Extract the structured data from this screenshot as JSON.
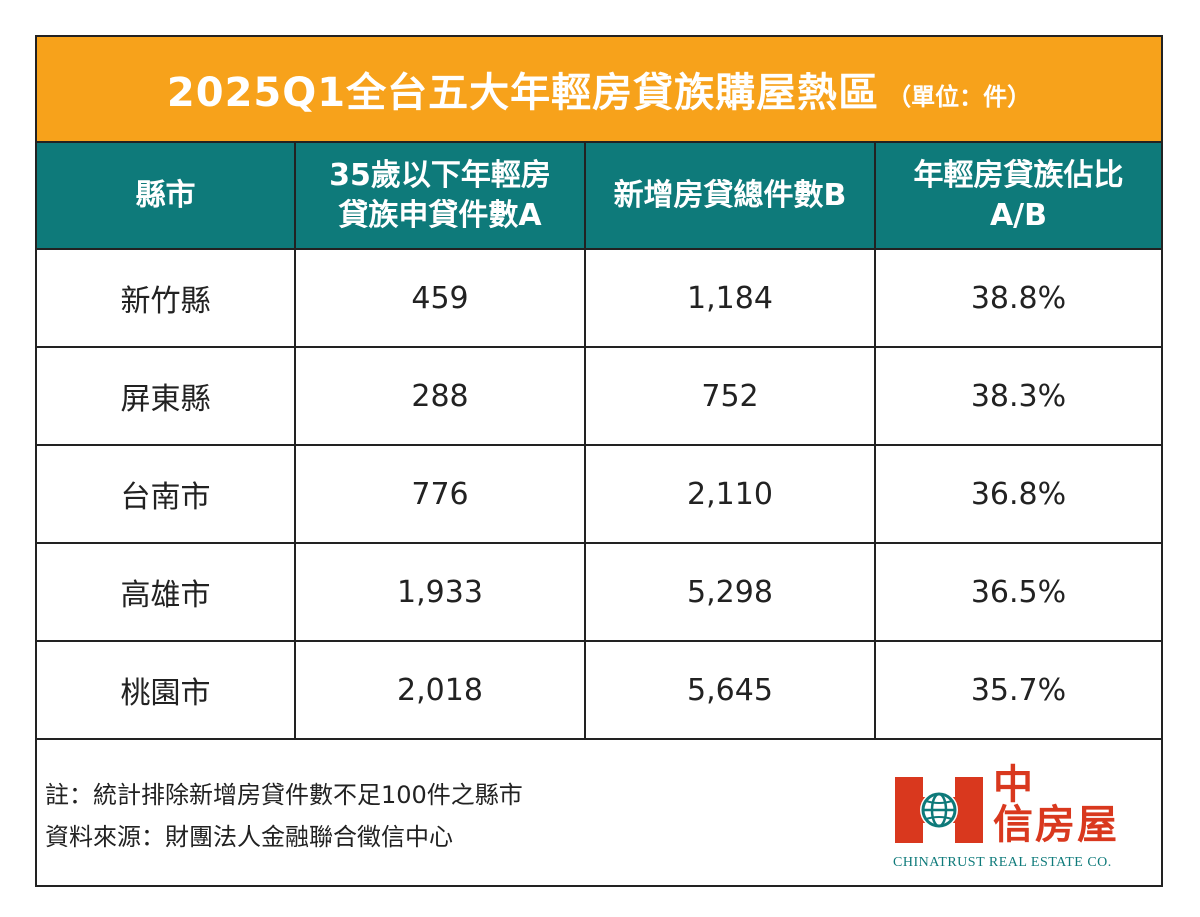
{
  "title": {
    "main": "2025Q1全台五大年輕房貸族購屋熱區",
    "unit": "（單位：件）"
  },
  "colors": {
    "title_bg": "#f7a21b",
    "header_bg": "#0e7a7a",
    "logo_red": "#d9381e",
    "logo_teal": "#0e7a7a"
  },
  "chart_data": {
    "type": "table",
    "title": "2025Q1全台五大年輕房貸族購屋熱區",
    "unit": "（單位：件）",
    "columns": [
      {
        "line1": "縣市",
        "line2": ""
      },
      {
        "line1": "35歲以下年輕房",
        "line2": "貸族申貸件數A"
      },
      {
        "line1": "新增房貸總件數B",
        "line2": ""
      },
      {
        "line1": "年輕房貸族佔比",
        "line2": "A/B"
      }
    ],
    "rows": [
      {
        "city": "新竹縣",
        "young": "459",
        "total": "1,184",
        "ratio": "38.8%"
      },
      {
        "city": "屏東縣",
        "young": "288",
        "total": "752",
        "ratio": "38.3%"
      },
      {
        "city": "台南市",
        "young": "776",
        "total": "2,110",
        "ratio": "36.8%"
      },
      {
        "city": "高雄市",
        "young": "1,933",
        "total": "5,298",
        "ratio": "36.5%"
      },
      {
        "city": "桃園市",
        "young": "2,018",
        "total": "5,645",
        "ratio": "35.7%"
      }
    ]
  },
  "footer": {
    "note": "註：統計排除新增房貸件數不足100件之縣市",
    "source": "資料來源：財團法人金融聯合徵信中心"
  },
  "logo": {
    "zh_line1": "中",
    "zh_line2": "信房屋",
    "en": "CHINATRUST REAL ESTATE CO."
  }
}
